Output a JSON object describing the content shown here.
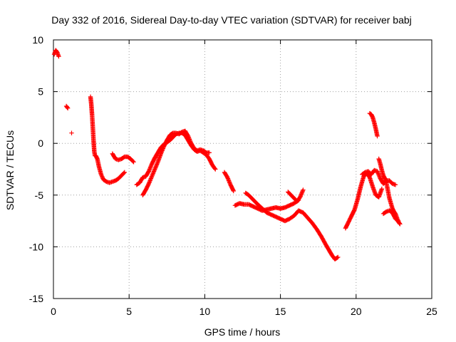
{
  "chart_data": {
    "type": "scatter",
    "title": "Day 332 of 2016, Sidereal Day-to-day VTEC variation (SDTVAR) for receiver babj",
    "xlabel": "GPS time / hours",
    "ylabel": "SDTVAR / TECUs",
    "xlim": [
      0,
      25
    ],
    "ylim": [
      -15,
      10
    ],
    "xticks": [
      0,
      5,
      10,
      15,
      20,
      25
    ],
    "yticks": [
      -15,
      -10,
      -5,
      0,
      5,
      10
    ],
    "grid": true,
    "marker": "plus",
    "series": [
      {
        "name": "SDTVAR",
        "color": "#ff0000",
        "segments": [
          {
            "x": [
              0.05,
              0.15,
              0.25,
              0.35
            ],
            "y": [
              8.6,
              9.0,
              8.8,
              8.4
            ]
          },
          {
            "x": [
              0.85,
              0.95
            ],
            "y": [
              3.6,
              3.4
            ]
          },
          {
            "x": [
              1.2
            ],
            "y": [
              1.0
            ]
          },
          {
            "x": [
              2.45,
              2.5,
              2.55,
              2.6,
              2.65,
              2.7,
              2.75,
              2.8,
              2.9,
              3.0,
              3.15,
              3.3,
              3.5,
              3.7,
              3.9,
              4.1,
              4.3,
              4.5,
              4.7
            ],
            "y": [
              4.5,
              3.8,
              2.8,
              1.6,
              0.3,
              -0.8,
              -1.2,
              -1.2,
              -1.5,
              -2.2,
              -3.0,
              -3.5,
              -3.7,
              -3.8,
              -3.7,
              -3.6,
              -3.4,
              -3.1,
              -2.8
            ]
          },
          {
            "x": [
              3.9,
              4.1,
              4.3,
              4.5,
              4.7,
              4.9,
              5.1,
              5.3
            ],
            "y": [
              -1.0,
              -1.5,
              -1.6,
              -1.5,
              -1.3,
              -1.3,
              -1.5,
              -1.8
            ]
          },
          {
            "x": [
              5.5,
              5.7,
              5.9,
              6.1,
              6.3,
              6.5,
              6.7,
              6.9,
              7.1,
              7.3,
              7.5,
              7.7,
              7.9,
              8.1,
              8.3,
              8.5,
              8.7,
              8.9,
              9.1,
              9.3,
              9.5,
              9.7,
              9.9,
              10.1,
              10.3,
              10.5,
              10.7
            ],
            "y": [
              -4.0,
              -3.8,
              -3.3,
              -3.2,
              -2.7,
              -2.0,
              -1.4,
              -0.9,
              -0.4,
              -0.1,
              0.1,
              0.3,
              0.6,
              0.9,
              1.0,
              1.0,
              0.8,
              0.3,
              -0.2,
              -0.6,
              -0.8,
              -0.7,
              -0.9,
              -1.1,
              -1.5,
              -2.1,
              -2.5
            ]
          },
          {
            "x": [
              5.9,
              6.1,
              6.3,
              6.5,
              6.7,
              6.9,
              7.1,
              7.3,
              7.5,
              7.7,
              7.9,
              8.1,
              8.3,
              8.5,
              8.7,
              8.9,
              9.1,
              9.3,
              9.5,
              9.7,
              9.9,
              10.1,
              10.3
            ],
            "y": [
              -5.0,
              -4.5,
              -3.9,
              -3.2,
              -2.5,
              -1.8,
              -1.0,
              -0.3,
              0.3,
              0.8,
              1.0,
              1.0,
              0.9,
              1.1,
              1.2,
              0.7,
              0.0,
              -0.5,
              -0.7,
              -0.6,
              -0.7,
              -0.9,
              -0.9
            ]
          },
          {
            "x": [
              11.3,
              11.5,
              11.7,
              11.9
            ],
            "y": [
              -2.8,
              -3.3,
              -4.0,
              -4.6
            ]
          },
          {
            "x": [
              12.0,
              12.3,
              12.6,
              12.9,
              13.2,
              13.5,
              13.8,
              14.1,
              14.4,
              14.7,
              15.0,
              15.3,
              15.6,
              15.9,
              16.2
            ],
            "y": [
              -6.0,
              -5.8,
              -5.9,
              -5.9,
              -6.1,
              -6.3,
              -6.5,
              -6.4,
              -6.3,
              -6.2,
              -6.3,
              -6.2,
              -6.0,
              -5.8,
              -5.5
            ]
          },
          {
            "x": [
              12.7,
              12.9,
              13.1,
              13.3,
              13.5,
              13.8,
              14.1,
              14.4,
              14.7,
              15.0,
              15.3,
              15.6,
              15.9,
              16.2,
              16.5,
              16.8,
              17.1,
              17.4,
              17.7,
              18.0,
              18.2,
              18.4,
              18.6,
              18.8
            ],
            "y": [
              -4.8,
              -5.0,
              -5.3,
              -5.6,
              -5.9,
              -6.3,
              -6.7,
              -6.9,
              -7.1,
              -7.3,
              -7.5,
              -7.3,
              -7.0,
              -6.5,
              -6.7,
              -7.2,
              -7.7,
              -8.3,
              -9.0,
              -9.8,
              -10.3,
              -10.8,
              -11.2,
              -11.0
            ]
          },
          {
            "x": [
              15.5,
              15.7,
              15.9,
              16.1,
              16.3,
              16.5
            ],
            "y": [
              -4.7,
              -5.0,
              -5.3,
              -5.6,
              -5.2,
              -4.5
            ]
          },
          {
            "x": [
              19.3,
              19.5,
              19.7,
              19.9,
              20.1,
              20.3,
              20.5,
              20.7,
              20.9,
              21.1,
              21.3,
              21.5,
              21.7
            ],
            "y": [
              -8.2,
              -7.6,
              -7.0,
              -6.4,
              -5.4,
              -4.2,
              -3.2,
              -2.9,
              -3.3,
              -4.2,
              -5.0,
              -5.2,
              -4.4
            ]
          },
          {
            "x": [
              20.4,
              20.6,
              20.8,
              21.0,
              21.2,
              21.4,
              21.6,
              21.8,
              22.0,
              22.2,
              22.4,
              22.6
            ],
            "y": [
              -3.0,
              -2.8,
              -2.7,
              -3.0,
              -2.6,
              -2.7,
              -3.4,
              -3.9,
              -3.6,
              -3.6,
              -3.9,
              -4.0
            ]
          },
          {
            "x": [
              20.9,
              21.0,
              21.1,
              21.2,
              21.3,
              21.4
            ],
            "y": [
              2.9,
              2.8,
              2.5,
              2.0,
              1.4,
              0.7
            ]
          },
          {
            "x": [
              21.5,
              21.6,
              21.7,
              21.8,
              21.9,
              22.0,
              22.2,
              22.4,
              22.5,
              22.6,
              22.7,
              22.8,
              22.9
            ],
            "y": [
              -1.5,
              -2.0,
              -2.6,
              -3.1,
              -3.4,
              -3.8,
              -5.3,
              -6.3,
              -6.6,
              -6.8,
              -7.2,
              -7.6,
              -7.8
            ]
          },
          {
            "x": [
              21.8,
              22.0,
              22.2,
              22.4,
              22.6,
              22.8
            ],
            "y": [
              -6.8,
              -6.6,
              -6.5,
              -6.7,
              -7.3,
              -7.5
            ]
          }
        ]
      }
    ]
  }
}
